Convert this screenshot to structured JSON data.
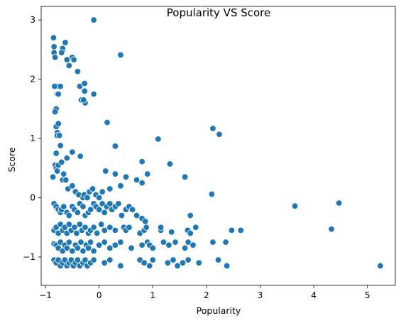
{
  "chart_data": {
    "type": "scatter",
    "title": "Popularity VS Score",
    "xlabel": "Popularity",
    "ylabel": "Score",
    "xlim": [
      -1.08,
      5.52
    ],
    "ylim": [
      -1.48,
      3.23
    ],
    "xticks": [
      -1,
      0,
      1,
      2,
      3,
      4,
      5
    ],
    "yticks": [
      -1,
      0,
      1,
      2,
      3
    ],
    "grid": false,
    "marker_color": "#1f77b4",
    "marker_edge_color": "#ffffff",
    "series": [
      {
        "x": [
          -0.85,
          -0.84,
          -0.84,
          -0.82,
          -0.78,
          -0.72,
          -0.68,
          -0.83,
          -0.78,
          -0.8,
          -0.68,
          -0.7,
          -0.5,
          -0.6,
          -0.56,
          -0.63,
          -0.76,
          -0.36,
          -0.33,
          -0.47,
          -0.4,
          -0.1,
          -0.1,
          -0.27,
          -0.26,
          -0.29,
          -0.27,
          0.15,
          0.4,
          -0.82,
          -0.8,
          -0.78,
          -0.78,
          -0.76,
          -0.74,
          -0.72,
          -0.8,
          -0.6,
          -0.5,
          -0.35,
          0.3,
          0.8,
          1.1,
          1.32,
          2.12,
          2.24,
          -0.86,
          -0.82,
          -0.8,
          -0.78,
          -0.76,
          -0.7,
          -0.68,
          -0.66,
          -0.62,
          -0.58,
          -0.5,
          -0.44,
          -0.38,
          -0.3,
          -0.28,
          -0.22,
          -0.18,
          -0.12,
          -0.06,
          0.0,
          0.06,
          0.12,
          0.2,
          0.3,
          0.4,
          0.5,
          0.7,
          0.8,
          0.9,
          1.6,
          -0.84,
          -0.8,
          -0.76,
          -0.72,
          -0.7,
          -0.66,
          -0.6,
          -0.56,
          -0.5,
          -0.46,
          -0.4,
          -0.36,
          -0.3,
          -0.26,
          -0.2,
          -0.16,
          -0.1,
          -0.06,
          0.0,
          0.06,
          0.1,
          0.14,
          0.2,
          0.24,
          0.3,
          0.36,
          0.42,
          0.5,
          0.56,
          0.62,
          0.7,
          0.8,
          0.86,
          1.7,
          2.1,
          3.65,
          4.47,
          -0.84,
          -0.8,
          -0.76,
          -0.72,
          -0.68,
          -0.64,
          -0.6,
          -0.56,
          -0.52,
          -0.46,
          -0.42,
          -0.36,
          -0.32,
          -0.26,
          -0.2,
          -0.16,
          -0.1,
          -0.04,
          0.04,
          0.1,
          0.2,
          0.3,
          0.46,
          0.5,
          0.56,
          0.76,
          0.84,
          0.88,
          1.15,
          1.15,
          1.35,
          1.65,
          1.7,
          1.8,
          2.47,
          2.64,
          4.33,
          -0.84,
          -0.8,
          -0.76,
          -0.72,
          -0.68,
          -0.64,
          -0.6,
          -0.56,
          -0.5,
          -0.44,
          -0.4,
          -0.34,
          -0.3,
          -0.24,
          -0.2,
          -0.16,
          -0.1,
          0.0,
          0.1,
          0.2,
          0.3,
          0.4,
          0.6,
          0.8,
          0.9,
          0.94,
          1.0,
          1.2,
          1.3,
          1.42,
          1.6,
          1.66,
          1.75,
          2.12,
          2.36,
          -0.84,
          -0.8,
          -0.76,
          -0.72,
          -0.68,
          -0.64,
          -0.6,
          -0.56,
          -0.52,
          -0.48,
          -0.44,
          -0.4,
          -0.36,
          -0.3,
          -0.26,
          -0.22,
          -0.16,
          -0.1,
          0.1,
          0.2,
          0.4,
          0.76,
          0.84,
          0.94,
          1.0,
          1.28,
          1.38,
          1.46,
          1.56,
          1.66,
          1.86,
          2.22,
          2.38,
          5.24
        ],
        "y": [
          2.7,
          2.55,
          2.45,
          2.37,
          1.88,
          1.88,
          2.48,
          1.88,
          1.75,
          1.5,
          2.52,
          2.45,
          2.37,
          2.33,
          2.23,
          2.62,
          1.75,
          1.88,
          1.65,
          2.33,
          2.13,
          3.0,
          1.75,
          1.8,
          1.6,
          1.65,
          1.93,
          1.27,
          2.41,
          1.45,
          1.2,
          1.1,
          1.05,
          1.25,
          1.05,
          0.88,
          0.75,
          0.67,
          0.77,
          0.7,
          0.87,
          0.61,
          0.99,
          0.57,
          1.17,
          1.07,
          0.35,
          0.55,
          0.5,
          0.45,
          0.55,
          0.6,
          0.3,
          0.4,
          0.3,
          0.15,
          0.2,
          0.1,
          0.05,
          0.0,
          0.05,
          0.0,
          0.1,
          0.15,
          0.05,
          0.0,
          0.1,
          0.45,
          0.15,
          0.4,
          0.2,
          0.35,
          0.3,
          0.25,
          0.4,
          0.35,
          -0.1,
          -0.15,
          -0.2,
          -0.25,
          -0.2,
          -0.15,
          -0.25,
          -0.3,
          -0.15,
          -0.2,
          -0.25,
          -0.1,
          -0.15,
          -0.3,
          -0.25,
          -0.2,
          -0.1,
          -0.15,
          -0.2,
          -0.1,
          -0.25,
          -0.15,
          -0.1,
          -0.2,
          -0.15,
          -0.1,
          -0.3,
          -0.2,
          -0.15,
          -0.2,
          -0.3,
          -0.35,
          -0.4,
          -0.3,
          0.06,
          -0.14,
          -0.09,
          -0.55,
          -0.5,
          -0.6,
          -0.45,
          -0.55,
          -0.5,
          -0.6,
          -0.45,
          -0.55,
          -0.5,
          -0.6,
          -0.45,
          -0.55,
          -0.5,
          -0.6,
          -0.55,
          -0.5,
          -0.6,
          -0.45,
          -0.55,
          -0.5,
          -0.55,
          -0.5,
          -0.55,
          -0.5,
          -0.6,
          -0.55,
          -0.5,
          -0.55,
          -0.5,
          -0.58,
          -0.55,
          -0.6,
          -0.5,
          -0.55,
          -0.55,
          -0.53,
          -0.78,
          -0.8,
          -0.85,
          -0.75,
          -0.9,
          -0.8,
          -0.85,
          -0.75,
          -0.9,
          -0.8,
          -0.85,
          -0.75,
          -0.9,
          -0.8,
          -0.85,
          -0.75,
          -0.9,
          -0.8,
          -0.75,
          -0.85,
          -0.8,
          -0.75,
          -0.85,
          -0.8,
          -0.75,
          -0.8,
          -0.85,
          -0.75,
          -0.8,
          -0.75,
          -0.85,
          -0.75,
          -0.8,
          -0.75,
          -0.75,
          -1.05,
          -1.1,
          -1.05,
          -1.15,
          -1.1,
          -1.05,
          -1.15,
          -1.1,
          -1.05,
          -1.15,
          -1.1,
          -1.05,
          -1.15,
          -1.1,
          -1.05,
          -1.15,
          -1.1,
          -1.05,
          -1.1,
          -1.05,
          -1.15,
          -1.05,
          -1.1,
          -1.15,
          -1.05,
          -1.1,
          -1.05,
          -1.15,
          -1.1,
          -1.05,
          -1.1,
          -1.05,
          -1.15,
          -1.15
        ]
      }
    ]
  }
}
